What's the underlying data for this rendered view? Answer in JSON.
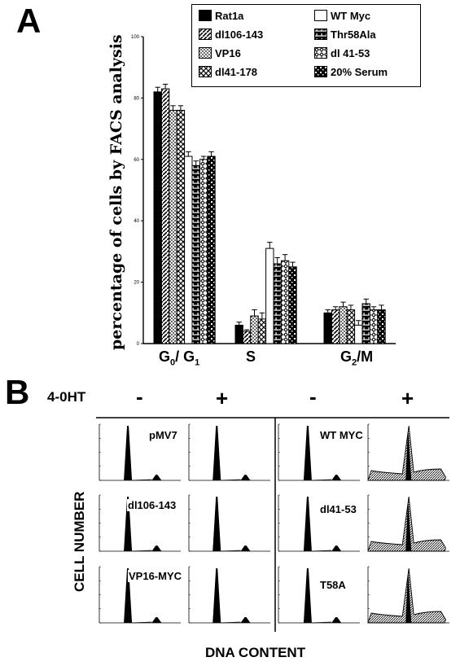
{
  "panel_a_label": "A",
  "panel_b_label": "B",
  "chart_data": {
    "type": "bar",
    "ylabel": "percentage of cells by FACS analysis",
    "ylim": [
      0,
      100
    ],
    "yticks": [
      "0",
      "20",
      "40",
      "60",
      "80",
      "100"
    ],
    "categories": [
      "G0/G1",
      "S",
      "G2/M"
    ],
    "legend": [
      "Rat1a",
      "dl106-143",
      "VP16",
      "dl41-178",
      "WT Myc",
      "Thr58Ala",
      "dl 41-53",
      "20% Serum"
    ],
    "legend_position": "top-right",
    "series": [
      {
        "name": "Rat1a",
        "values": [
          82,
          6,
          10
        ],
        "errors": [
          1.5,
          1,
          1
        ]
      },
      {
        "name": "dl106-143",
        "values": [
          83,
          4,
          11
        ],
        "errors": [
          1.5,
          0.5,
          1
        ]
      },
      {
        "name": "VP16",
        "values": [
          76,
          9,
          12
        ],
        "errors": [
          1.5,
          2,
          1.5
        ]
      },
      {
        "name": "dl41-178",
        "values": [
          76,
          8,
          11
        ],
        "errors": [
          1.5,
          2,
          1.5
        ]
      },
      {
        "name": "WT Myc",
        "values": [
          61,
          31,
          6
        ],
        "errors": [
          1.5,
          2,
          1.5
        ]
      },
      {
        "name": "Thr58Ala",
        "values": [
          58,
          26,
          13
        ],
        "errors": [
          1.5,
          2,
          1.5
        ]
      },
      {
        "name": "dl 41-53",
        "values": [
          60,
          27,
          11
        ],
        "errors": [
          1,
          2,
          1
        ]
      },
      {
        "name": "20% Serum",
        "values": [
          61,
          25,
          11
        ],
        "errors": [
          1.5,
          1.5,
          1.5
        ]
      }
    ]
  },
  "panel_b": {
    "treatment_label": "4-0HT",
    "column_signs": [
      "-",
      "+",
      "-",
      "+"
    ],
    "row_labels_left": [
      "pMV7",
      "dl106-143",
      "VP16-MYC"
    ],
    "row_labels_right": [
      "WT MYC",
      "dl41-53",
      "T58A"
    ],
    "y_axis_label": "CELL NUMBER",
    "x_axis_label": "DNA CONTENT"
  }
}
